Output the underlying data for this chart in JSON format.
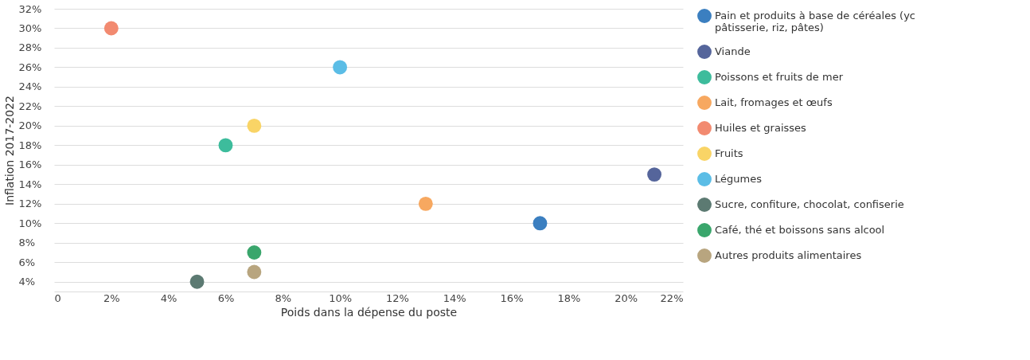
{
  "chart_data": {
    "type": "scatter",
    "xlabel": "Poids dans la dépense du poste",
    "ylabel": "Inflation 2017-2022",
    "xlim": [
      0,
      22
    ],
    "ylim": [
      3,
      32
    ],
    "xticks": [
      0,
      {
        "value": 2,
        "label": "2%"
      },
      {
        "value": 4,
        "label": "4%"
      },
      {
        "value": 6,
        "label": "6%"
      },
      {
        "value": 8,
        "label": "8%"
      },
      {
        "value": 10,
        "label": "10%"
      },
      {
        "value": 12,
        "label": "12%"
      },
      {
        "value": 14,
        "label": "14%"
      },
      {
        "value": 16,
        "label": "16%"
      },
      {
        "value": 18,
        "label": "18%"
      },
      {
        "value": 20,
        "label": "20%"
      },
      {
        "value": 22,
        "label": "22%"
      }
    ],
    "yticks": [
      {
        "value": 4,
        "label": "4%"
      },
      {
        "value": 6,
        "label": "6%"
      },
      {
        "value": 8,
        "label": "8%"
      },
      {
        "value": 10,
        "label": "10%"
      },
      {
        "value": 12,
        "label": "12%"
      },
      {
        "value": 14,
        "label": "14%"
      },
      {
        "value": 16,
        "label": "16%"
      },
      {
        "value": 18,
        "label": "18%"
      },
      {
        "value": 20,
        "label": "20%"
      },
      {
        "value": 22,
        "label": "22%"
      },
      {
        "value": 24,
        "label": "24%"
      },
      {
        "value": 26,
        "label": "26%"
      },
      {
        "value": 28,
        "label": "28%"
      },
      {
        "value": 30,
        "label": "30%"
      },
      {
        "value": 32,
        "label": "32%"
      }
    ],
    "grid": "y",
    "legend": "right",
    "marker": "circle",
    "series": [
      {
        "name": "Pain et produits à base de céréales (yc pâtisserie, riz, pâtes)",
        "color": "#3b7fc0",
        "x": [
          17
        ],
        "values": [
          10
        ]
      },
      {
        "name": "Viande",
        "color": "#55659b",
        "x": [
          21
        ],
        "values": [
          15
        ]
      },
      {
        "name": "Poissons et fruits de mer",
        "color": "#3dbc9c",
        "x": [
          6
        ],
        "values": [
          18
        ]
      },
      {
        "name": "Lait, fromages et œufs",
        "color": "#f7a860",
        "x": [
          13
        ],
        "values": [
          12
        ]
      },
      {
        "name": "Huiles et graisses",
        "color": "#f28a70",
        "x": [
          2
        ],
        "values": [
          30
        ]
      },
      {
        "name": "Fruits",
        "color": "#f9d466",
        "x": [
          7
        ],
        "values": [
          20
        ]
      },
      {
        "name": "Légumes",
        "color": "#5bbde6",
        "x": [
          10
        ],
        "values": [
          26
        ]
      },
      {
        "name": "Sucre, confiture, chocolat, confiserie",
        "color": "#5c7a72",
        "x": [
          5
        ],
        "values": [
          4
        ]
      },
      {
        "name": "Café, thé et boissons sans alcool",
        "color": "#3aa66c",
        "x": [
          7
        ],
        "values": [
          7
        ]
      },
      {
        "name": "Autres produits alimentaires",
        "color": "#b8a57f",
        "x": [
          7
        ],
        "values": [
          5
        ]
      }
    ]
  }
}
